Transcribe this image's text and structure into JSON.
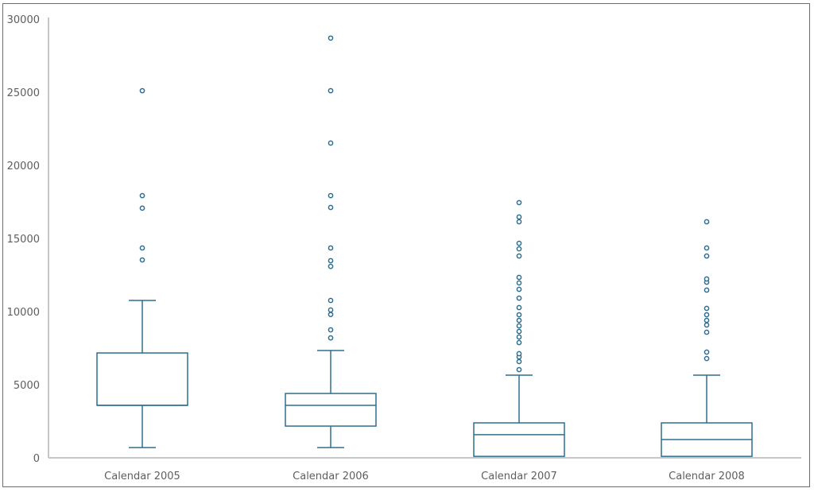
{
  "chart_data": {
    "type": "boxplot",
    "title": "",
    "xlabel": "",
    "ylabel": "",
    "ylim": [
      0,
      30000
    ],
    "yticks": [
      0,
      5000,
      10000,
      15000,
      20000,
      25000,
      30000
    ],
    "ytick_labels": [
      "0",
      "5000",
      "10000",
      "15000",
      "20000",
      "25000",
      "30000"
    ],
    "grid": false,
    "legend": null,
    "color": "#2e6f8e",
    "categories": [
      "Calendar 2005",
      "Calendar 2006",
      "Calendar 2007",
      "Calendar 2008"
    ],
    "series": [
      {
        "name": "Calendar 2005",
        "whisker_low": 700,
        "q1": 3590,
        "median": 3590,
        "q3": 7170,
        "whisker_high": 10760,
        "outliers": [
          13530,
          14350,
          17070,
          17930,
          25100
        ]
      },
      {
        "name": "Calendar 2006",
        "whisker_low": 700,
        "q1": 2170,
        "median": 3590,
        "q3": 4400,
        "whisker_high": 7340,
        "outliers": [
          8200,
          8750,
          9800,
          10110,
          10760,
          13090,
          13480,
          14350,
          17120,
          17930,
          21520,
          25100,
          28700
        ]
      },
      {
        "name": "Calendar 2007",
        "whisker_low": 100,
        "q1": 100,
        "median": 1580,
        "q3": 2390,
        "whisker_high": 5650,
        "outliers": [
          6030,
          6580,
          6900,
          7120,
          7880,
          8260,
          8640,
          9020,
          9400,
          9780,
          10270,
          10920,
          11520,
          11960,
          12340,
          13800,
          14290,
          14670,
          16140,
          16470,
          17450
        ]
      },
      {
        "name": "Calendar 2008",
        "whisker_low": 100,
        "q1": 100,
        "median": 1250,
        "q3": 2390,
        "whisker_high": 5650,
        "outliers": [
          6790,
          7230,
          8590,
          9080,
          9400,
          9780,
          10220,
          11470,
          12010,
          12230,
          13800,
          14350,
          16140
        ]
      }
    ]
  }
}
